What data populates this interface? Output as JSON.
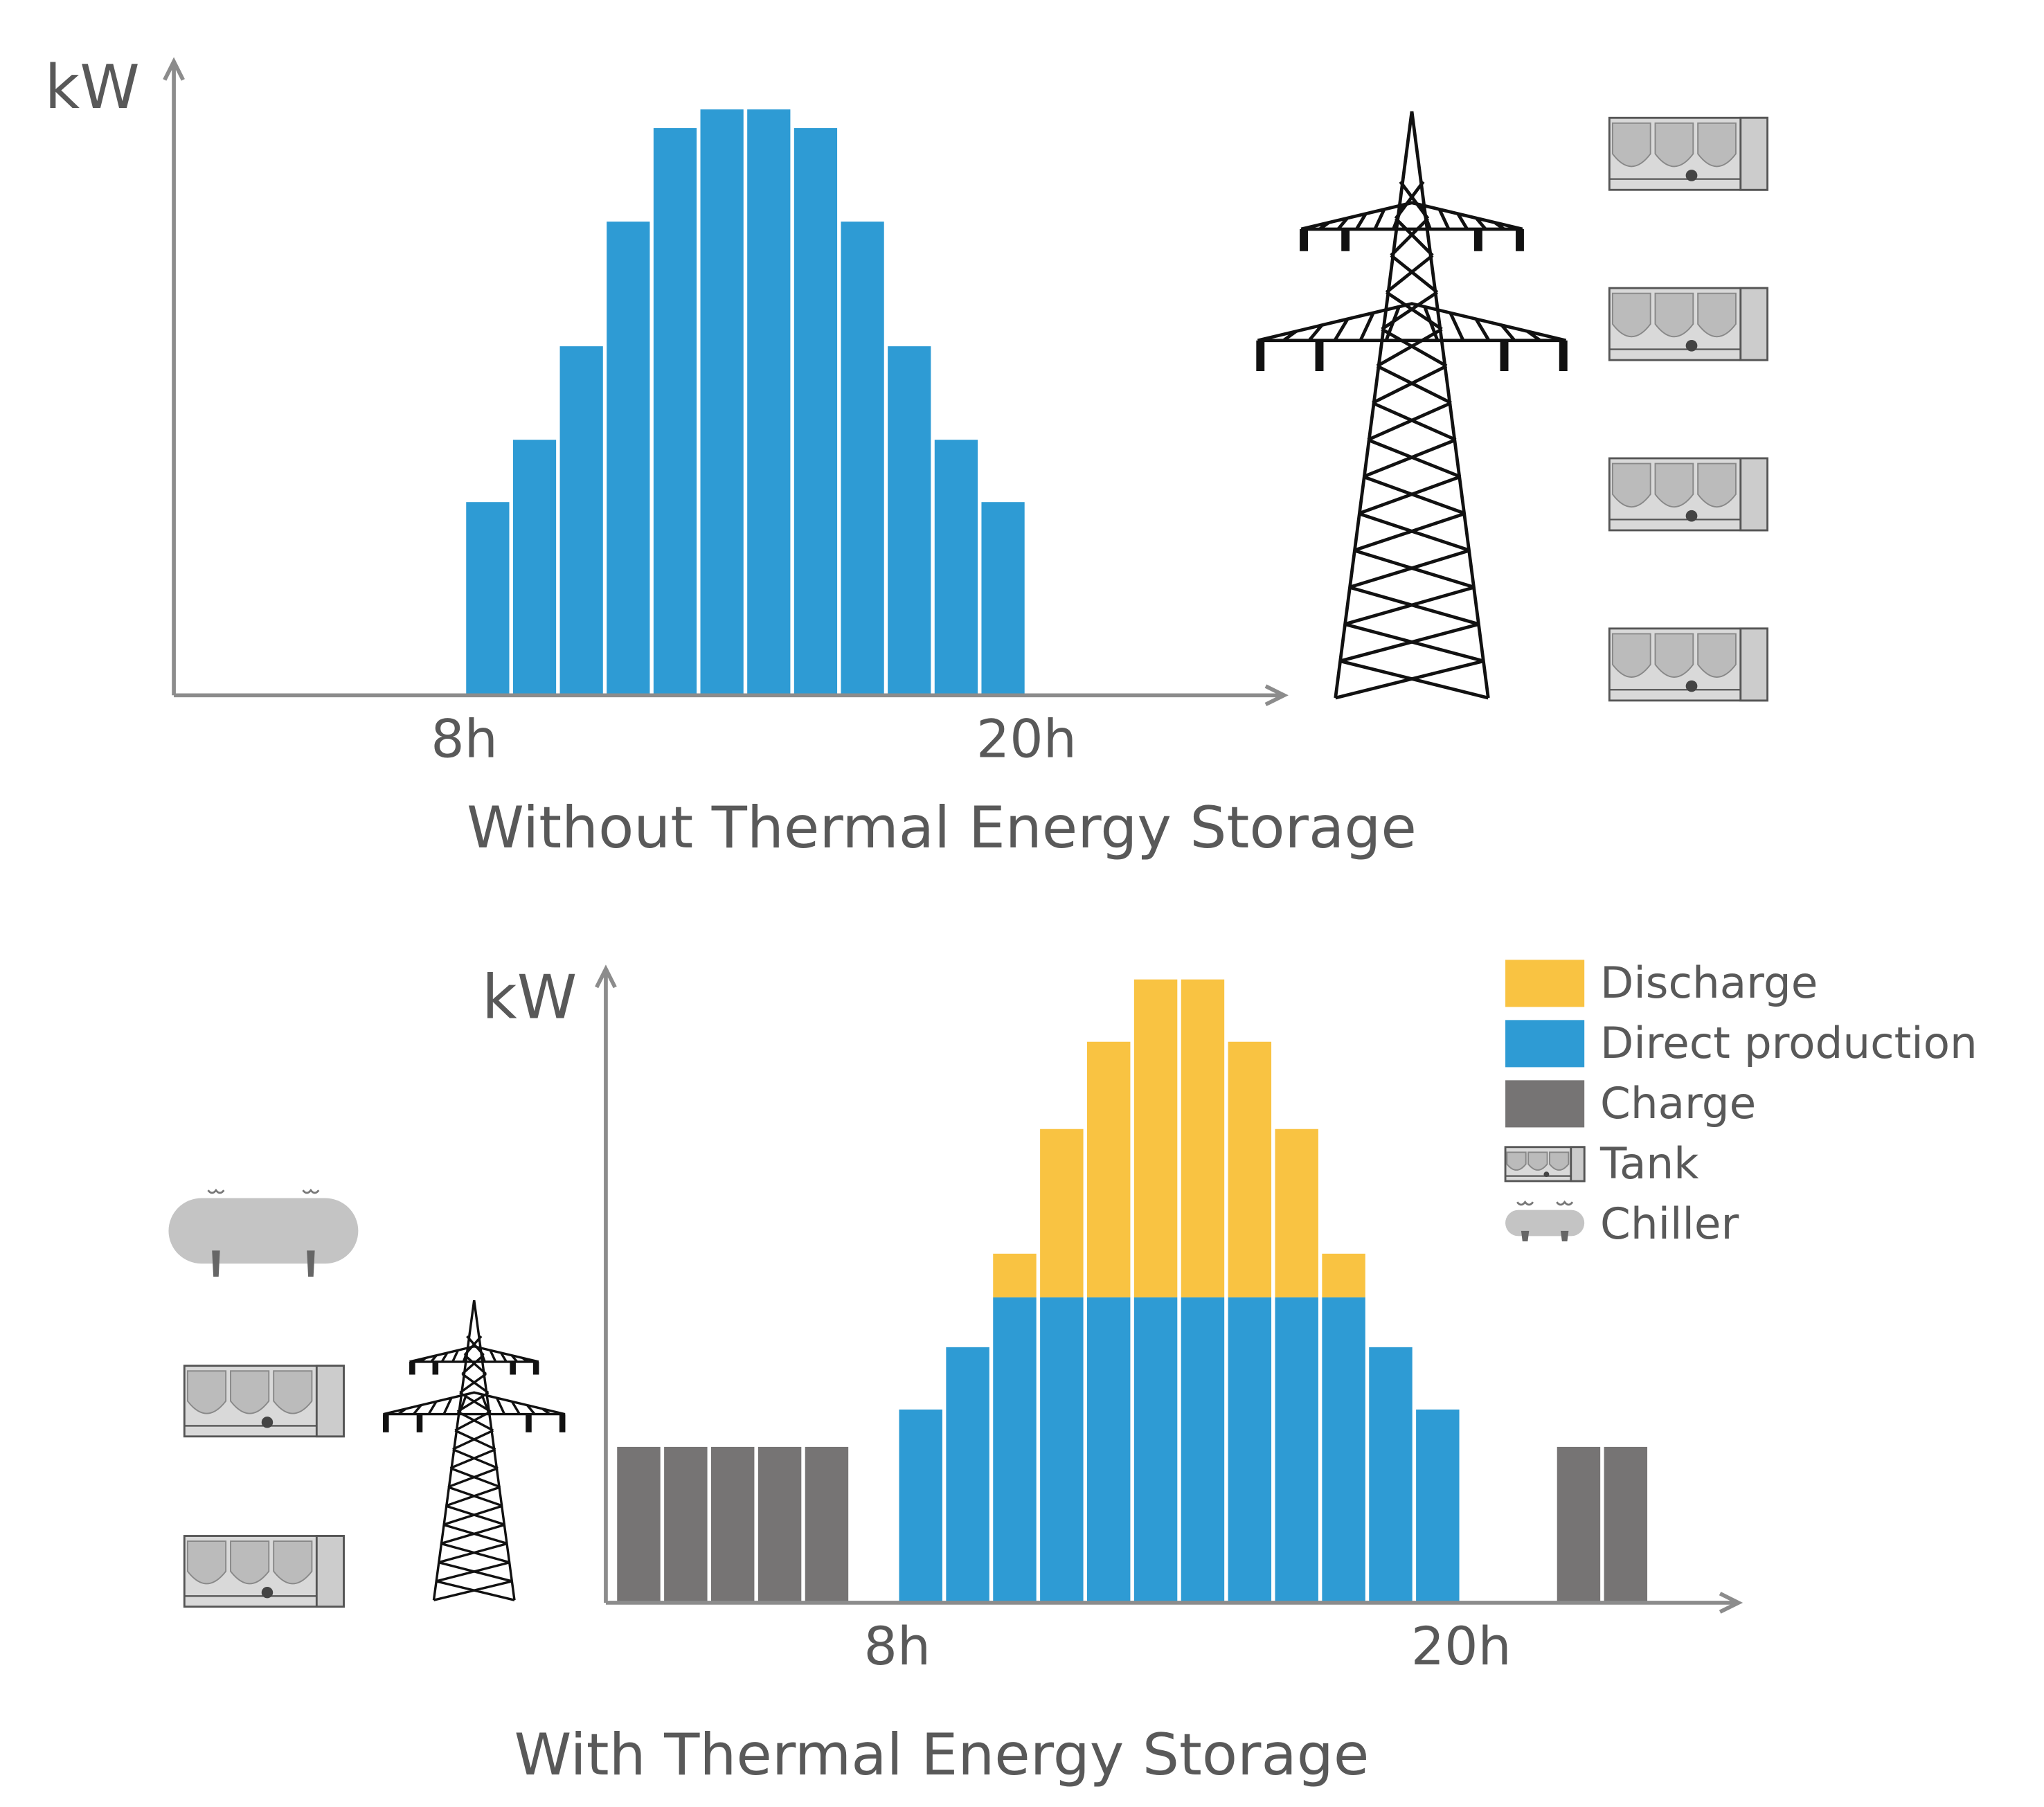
{
  "chart_data": [
    {
      "type": "bar",
      "title": "Without Thermal Energy Storage",
      "y_label": "kW",
      "x": [
        8.5,
        9.5,
        10.5,
        11.5,
        12.5,
        13.5,
        14.5,
        15.5,
        16.5,
        17.5,
        18.5,
        19.5
      ],
      "series": [
        {
          "name": "Direct production",
          "color": "#2e9bd4",
          "values": [
            31,
            41,
            56,
            76,
            91,
            94,
            94,
            91,
            76,
            56,
            41,
            31
          ]
        }
      ],
      "xlim": [
        1.8,
        25.5
      ],
      "xticks": [
        {
          "value": 8,
          "label": "8h"
        },
        {
          "value": 20,
          "label": "20h"
        }
      ],
      "ylim": [
        0,
        100
      ],
      "legend": false
    },
    {
      "type": "stacked-bar",
      "title": "With Thermal Energy Storage",
      "y_label": "kW",
      "x": [
        2.5,
        3.5,
        4.5,
        5.5,
        6.5,
        7.5,
        8.5,
        9.5,
        10.5,
        11.5,
        12.5,
        13.5,
        14.5,
        15.5,
        16.5,
        17.5,
        18.5,
        19.5,
        20.5,
        21.5,
        22.5,
        23.5
      ],
      "series": [
        {
          "name": "Charge",
          "color": "#767474",
          "values": [
            25,
            25,
            25,
            25,
            25,
            null,
            null,
            null,
            null,
            null,
            null,
            null,
            null,
            null,
            null,
            null,
            null,
            null,
            null,
            null,
            25,
            25
          ]
        },
        {
          "name": "Direct production",
          "color": "#2e9bd4",
          "values": [
            null,
            null,
            null,
            null,
            null,
            null,
            31,
            41,
            49,
            49,
            49,
            49,
            49,
            49,
            49,
            49,
            41,
            31,
            null,
            null,
            null,
            null
          ]
        },
        {
          "name": "Discharge",
          "color": "#f9c342",
          "values": [
            null,
            null,
            null,
            null,
            null,
            null,
            null,
            null,
            7,
            27,
            41,
            51,
            51,
            41,
            27,
            7,
            null,
            null,
            null,
            null,
            null,
            null
          ]
        }
      ],
      "xlim": [
        1.8,
        25.9
      ],
      "xticks": [
        {
          "value": 8,
          "label": "8h"
        },
        {
          "value": 20,
          "label": "20h"
        }
      ],
      "ylim": [
        0,
        100
      ],
      "legend": true,
      "legend_order": [
        2,
        1,
        0
      ],
      "legend_icons": [
        "Tank",
        "Chiller"
      ]
    }
  ]
}
